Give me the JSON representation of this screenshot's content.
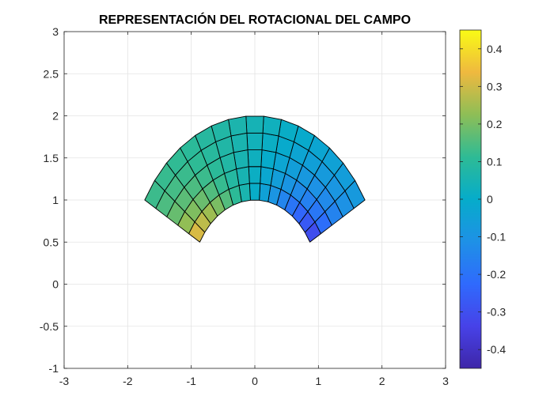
{
  "chart_data": {
    "type": "surface",
    "title": "REPRESENTACIÓN DEL ROTACIONAL DEL CAMPO",
    "xlabel": "",
    "ylabel": "",
    "xlim": [
      -3,
      3
    ],
    "ylim": [
      -1,
      3
    ],
    "xticks": [
      "-3",
      "-2",
      "-1",
      "0",
      "1",
      "2",
      "3"
    ],
    "yticks": [
      "-1",
      "-0.5",
      "0",
      "0.5",
      "1",
      "1.5",
      "2",
      "2.5",
      "3"
    ],
    "grid": true,
    "view": "top (2-D)",
    "surface": {
      "domain": "annular sector",
      "r_range": [
        1,
        2
      ],
      "theta_range_deg": [
        30,
        150
      ],
      "r_divisions": 5,
      "theta_divisions": 15,
      "color_variable": "curl",
      "color_range": [
        -0.45,
        0.45
      ]
    },
    "colorbar": {
      "ticks": [
        "0.4",
        "0.3",
        "0.2",
        "0.1",
        "0",
        "-0.1",
        "-0.2",
        "-0.3",
        "-0.4"
      ],
      "limits": [
        -0.45,
        0.45
      ],
      "colormap": "parula",
      "placement": "right"
    }
  }
}
